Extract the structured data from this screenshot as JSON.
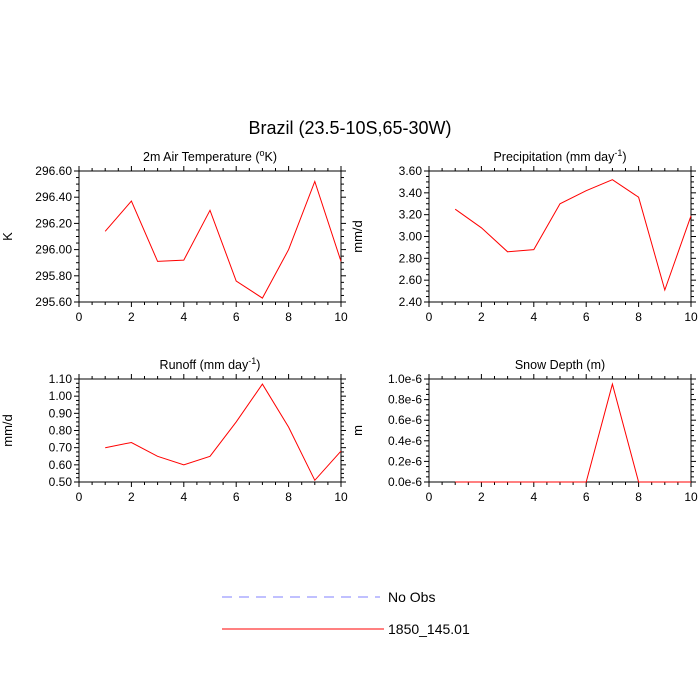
{
  "title": "Brazil (23.5-10S,65-30W)",
  "legend": [
    {
      "label": "No Obs",
      "color": "#8080ff",
      "style": "dashed"
    },
    {
      "label": "1850_145.01",
      "color": "#ff0000",
      "style": "solid"
    }
  ],
  "chart_data": [
    {
      "type": "line",
      "title": "2m Air Temperature (°K)",
      "title_parts": [
        "2m Air Temperature (",
        "o",
        "K)"
      ],
      "ylabel": "K",
      "xlabel": "",
      "xlim": [
        0,
        10
      ],
      "ylim": [
        295.6,
        296.6
      ],
      "xticks": [
        0,
        2,
        4,
        6,
        8,
        10
      ],
      "yticks": [
        295.6,
        295.8,
        296.0,
        296.2,
        296.4,
        296.6
      ],
      "yticklabels": [
        "295.60",
        "295.80",
        "296.00",
        "296.20",
        "296.40",
        "296.60"
      ],
      "grid": false,
      "series": [
        {
          "name": "1850_145.01",
          "x": [
            1,
            2,
            3,
            4,
            5,
            6,
            7,
            8,
            9,
            10
          ],
          "y": [
            296.14,
            296.37,
            295.91,
            295.92,
            296.3,
            295.76,
            295.63,
            296.0,
            296.52,
            295.91
          ]
        }
      ]
    },
    {
      "type": "line",
      "title": "Precipitation (mm day-1)",
      "title_parts": [
        "Precipitation (mm day",
        "-1",
        ")"
      ],
      "ylabel": "mm/d",
      "xlabel": "",
      "xlim": [
        0,
        10
      ],
      "ylim": [
        2.4,
        3.6
      ],
      "xticks": [
        0,
        2,
        4,
        6,
        8,
        10
      ],
      "yticks": [
        2.4,
        2.6,
        2.8,
        3.0,
        3.2,
        3.4,
        3.6
      ],
      "yticklabels": [
        "2.40",
        "2.60",
        "2.80",
        "3.00",
        "3.20",
        "3.40",
        "3.60"
      ],
      "grid": false,
      "series": [
        {
          "name": "1850_145.01",
          "x": [
            1,
            2,
            3,
            4,
            5,
            6,
            7,
            8,
            9,
            10
          ],
          "y": [
            3.25,
            3.08,
            2.86,
            2.88,
            3.3,
            3.42,
            3.52,
            3.36,
            2.51,
            3.19
          ]
        }
      ]
    },
    {
      "type": "line",
      "title": "Runoff (mm day-1)",
      "title_parts": [
        "Runoff (mm day",
        "-1",
        ")"
      ],
      "ylabel": "mm/d",
      "xlabel": "",
      "xlim": [
        0,
        10
      ],
      "ylim": [
        0.5,
        1.1
      ],
      "xticks": [
        0,
        2,
        4,
        6,
        8,
        10
      ],
      "yticks": [
        0.5,
        0.6,
        0.7,
        0.8,
        0.9,
        1.0,
        1.1
      ],
      "yticklabels": [
        "0.50",
        "0.60",
        "0.70",
        "0.80",
        "0.90",
        "1.00",
        "1.10"
      ],
      "grid": false,
      "series": [
        {
          "name": "1850_145.01",
          "x": [
            1,
            2,
            3,
            4,
            5,
            6,
            7,
            8,
            9,
            10
          ],
          "y": [
            0.7,
            0.73,
            0.65,
            0.6,
            0.65,
            0.85,
            1.07,
            0.82,
            0.51,
            0.68
          ]
        }
      ]
    },
    {
      "type": "line",
      "title": "Snow Depth (m)",
      "title_parts": [
        "Snow Depth (m)",
        "",
        ""
      ],
      "ylabel": "m",
      "xlabel": "",
      "xlim": [
        0,
        10
      ],
      "ylim": [
        0,
        1e-06
      ],
      "xticks": [
        0,
        2,
        4,
        6,
        8,
        10
      ],
      "yticks": [
        0,
        2e-07,
        4e-07,
        6e-07,
        8e-07,
        1e-06
      ],
      "yticklabels": [
        "0.0e-6",
        "0.2e-6",
        "0.4e-6",
        "0.6e-6",
        "0.8e-6",
        "1.0e-6"
      ],
      "grid": false,
      "series": [
        {
          "name": "1850_145.01",
          "x": [
            1,
            2,
            3,
            4,
            5,
            6,
            7,
            8,
            9,
            10
          ],
          "y": [
            0,
            0,
            0,
            0,
            0,
            0,
            9.5e-07,
            0,
            0,
            0
          ]
        }
      ]
    }
  ]
}
